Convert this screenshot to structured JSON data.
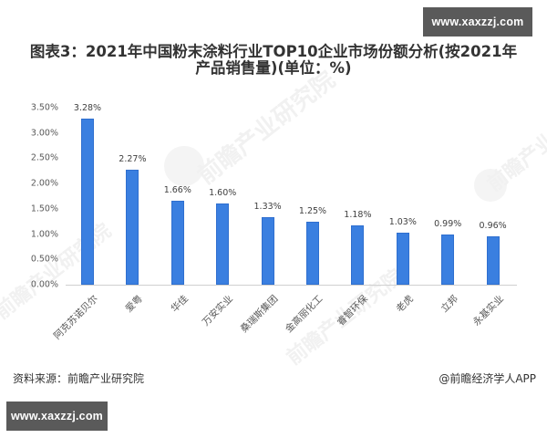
{
  "badges": {
    "top": "www.xaxzzj.com",
    "bottom": "www.xaxzzj.com"
  },
  "title": {
    "line1": "图表3：2021年中国粉末涂料行业TOP10企业市场份额分析(按2021年",
    "line2": "产品销售量)(单位：%)"
  },
  "footer": {
    "source": "资料来源：前瞻产业研究院",
    "credit": "@前瞻经济学人APP"
  },
  "watermark": {
    "text": "前瞻产业研究院"
  },
  "colors": {
    "bar": "#3a7fe0",
    "badge_bg": "#5a5a5a"
  },
  "chart_data": {
    "type": "bar",
    "title": "图表3：2021年中国粉末涂料行业TOP10企业市场份额分析(按2021年产品销售量)(单位：%)",
    "xlabel": "",
    "ylabel": "",
    "ylim": [
      0,
      3.5
    ],
    "yticks": [
      "0.00%",
      "0.50%",
      "1.00%",
      "1.50%",
      "2.00%",
      "2.50%",
      "3.00%",
      "3.50%"
    ],
    "grid": false,
    "legend": null,
    "categories": [
      "阿克苏诺贝尔",
      "爱粤",
      "华佳",
      "万安实业",
      "桑瑞斯集团",
      "金高丽化工",
      "睿智环保",
      "老虎",
      "立邦",
      "永基实业"
    ],
    "values": [
      3.28,
      2.27,
      1.66,
      1.6,
      1.33,
      1.25,
      1.18,
      1.03,
      0.99,
      0.96
    ],
    "value_labels": [
      "3.28%",
      "2.27%",
      "1.66%",
      "1.60%",
      "1.33%",
      "1.25%",
      "1.18%",
      "1.03%",
      "0.99%",
      "0.96%"
    ]
  }
}
